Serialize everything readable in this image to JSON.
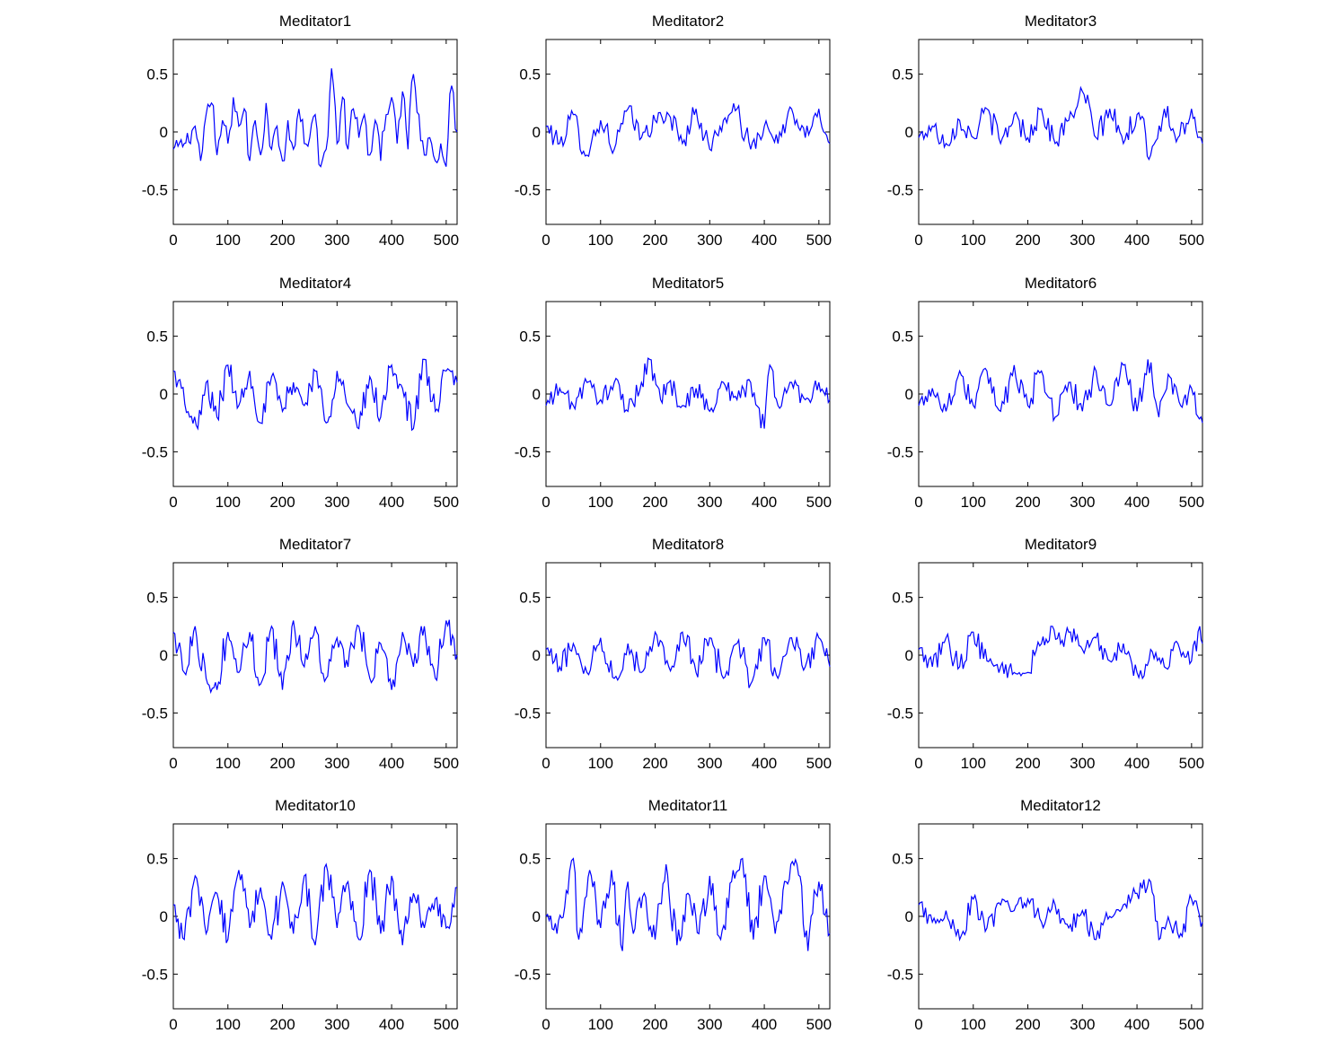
{
  "figure": {
    "background": "#ffffff",
    "line_color": "#0000ff",
    "axis_color": "#000000"
  },
  "chart_data": [
    {
      "type": "line",
      "title": "Meditator1",
      "xlim": [
        0,
        520
      ],
      "ylim": [
        -0.8,
        0.8
      ],
      "xticks": [
        0,
        100,
        200,
        300,
        400,
        500
      ],
      "xtick_labels": [
        "0",
        "100",
        "200",
        "300",
        "400",
        "500"
      ],
      "yticks": [
        0.5,
        0,
        -0.5
      ],
      "ytick_labels": [
        "0.5",
        "0",
        "-0.5"
      ],
      "grid": false,
      "series": [
        {
          "x": [
            0,
            20,
            40,
            50,
            60,
            70,
            80,
            90,
            100,
            110,
            120,
            130,
            140,
            150,
            160,
            170,
            180,
            190,
            200,
            210,
            220,
            230,
            240,
            250,
            260,
            270,
            280,
            290,
            300,
            310,
            320,
            330,
            340,
            350,
            360,
            370,
            380,
            390,
            400,
            410,
            420,
            430,
            440,
            450,
            460,
            470,
            480,
            490,
            500,
            510,
            520
          ],
          "values": [
            -0.15,
            -0.1,
            0.05,
            -0.25,
            0.15,
            0.25,
            -0.2,
            0.1,
            -0.1,
            0.3,
            0.05,
            0.2,
            -0.25,
            0.1,
            -0.2,
            0.25,
            -0.15,
            0.05,
            -0.25,
            0.1,
            -0.15,
            0.2,
            -0.1,
            -0.05,
            0.15,
            -0.3,
            -0.15,
            0.55,
            -0.1,
            0.3,
            -0.15,
            0.2,
            -0.05,
            0.15,
            -0.2,
            0.1,
            -0.25,
            0.15,
            0.3,
            -0.1,
            0.35,
            -0.15,
            0.5,
            0.15,
            -0.2,
            -0.05,
            -0.25,
            -0.1,
            -0.3,
            0.4,
            0.0
          ]
        }
      ]
    },
    {
      "type": "line",
      "title": "Meditator2",
      "xlim": [
        0,
        520
      ],
      "ylim": [
        -0.8,
        0.8
      ],
      "xticks": [
        0,
        100,
        200,
        300,
        400,
        500
      ],
      "xtick_labels": [
        "0",
        "100",
        "200",
        "300",
        "400",
        "500"
      ],
      "yticks": [
        0.5,
        0,
        -0.5
      ],
      "ytick_labels": [
        "0.5",
        "0",
        "-0.5"
      ],
      "grid": false,
      "series": [
        {
          "x": [
            0,
            25,
            50,
            75,
            100,
            125,
            150,
            175,
            200,
            225,
            250,
            275,
            300,
            325,
            350,
            375,
            400,
            425,
            450,
            475,
            500,
            520
          ],
          "values": [
            0.05,
            -0.1,
            0.15,
            -0.2,
            0.1,
            -0.15,
            0.2,
            -0.05,
            0.1,
            0.15,
            -0.1,
            0.2,
            -0.15,
            0.1,
            0.2,
            -0.15,
            0.05,
            -0.1,
            0.2,
            -0.05,
            0.2,
            -0.1
          ]
        }
      ]
    },
    {
      "type": "line",
      "title": "Meditator3",
      "xlim": [
        0,
        520
      ],
      "ylim": [
        -0.8,
        0.8
      ],
      "xticks": [
        0,
        100,
        200,
        300,
        400,
        500
      ],
      "xtick_labels": [
        "0",
        "100",
        "200",
        "300",
        "400",
        "500"
      ],
      "yticks": [
        0.5,
        0,
        -0.5
      ],
      "ytick_labels": [
        "0.5",
        "0",
        "-0.5"
      ],
      "grid": false,
      "series": [
        {
          "x": [
            0,
            25,
            50,
            75,
            100,
            125,
            150,
            175,
            200,
            225,
            250,
            275,
            300,
            325,
            350,
            375,
            400,
            425,
            450,
            475,
            500,
            520
          ],
          "values": [
            -0.05,
            0.05,
            -0.1,
            0.1,
            -0.05,
            0.2,
            -0.1,
            0.15,
            -0.05,
            0.2,
            -0.1,
            0.1,
            0.35,
            -0.05,
            0.2,
            -0.1,
            0.15,
            -0.2,
            0.2,
            -0.05,
            0.2,
            -0.1
          ]
        }
      ]
    },
    {
      "type": "line",
      "title": "Meditator4",
      "xlim": [
        0,
        520
      ],
      "ylim": [
        -0.8,
        0.8
      ],
      "xticks": [
        0,
        100,
        200,
        300,
        400,
        500
      ],
      "xtick_labels": [
        "0",
        "100",
        "200",
        "300",
        "400",
        "500"
      ],
      "yticks": [
        0.5,
        0,
        -0.5
      ],
      "ytick_labels": [
        "0.5",
        "0",
        "-0.5"
      ],
      "grid": false,
      "series": [
        {
          "x": [
            0,
            15,
            30,
            45,
            60,
            80,
            100,
            120,
            140,
            160,
            180,
            200,
            220,
            240,
            260,
            280,
            300,
            320,
            340,
            360,
            380,
            400,
            420,
            440,
            460,
            480,
            500,
            520
          ],
          "values": [
            0.2,
            0.05,
            -0.2,
            -0.3,
            0.1,
            -0.2,
            0.25,
            -0.1,
            0.2,
            -0.25,
            0.15,
            -0.15,
            0.1,
            -0.1,
            0.2,
            -0.25,
            0.2,
            -0.1,
            -0.3,
            0.15,
            -0.2,
            0.25,
            0.05,
            -0.3,
            0.3,
            -0.15,
            0.2,
            0.1
          ]
        }
      ]
    },
    {
      "type": "line",
      "title": "Meditator5",
      "xlim": [
        0,
        520
      ],
      "ylim": [
        -0.8,
        0.8
      ],
      "xticks": [
        0,
        100,
        200,
        300,
        400,
        500
      ],
      "xtick_labels": [
        "0",
        "100",
        "200",
        "300",
        "400",
        "500"
      ],
      "yticks": [
        0.5,
        0,
        -0.5
      ],
      "ytick_labels": [
        "0.5",
        "0",
        "-0.5"
      ],
      "grid": false,
      "series": [
        {
          "x": [
            0,
            25,
            50,
            75,
            100,
            125,
            150,
            175,
            190,
            210,
            225,
            250,
            275,
            300,
            325,
            350,
            375,
            400,
            410,
            425,
            450,
            475,
            500,
            520
          ],
          "values": [
            -0.1,
            0.05,
            -0.1,
            0.1,
            -0.05,
            0.1,
            -0.15,
            0.1,
            0.3,
            -0.05,
            0.1,
            -0.1,
            0.05,
            -0.15,
            0.1,
            -0.05,
            0.1,
            -0.3,
            0.25,
            -0.1,
            0.1,
            -0.05,
            0.1,
            -0.05
          ]
        }
      ]
    },
    {
      "type": "line",
      "title": "Meditator6",
      "xlim": [
        0,
        520
      ],
      "ylim": [
        -0.8,
        0.8
      ],
      "xticks": [
        0,
        100,
        200,
        300,
        400,
        500
      ],
      "xtick_labels": [
        "0",
        "100",
        "200",
        "300",
        "400",
        "500"
      ],
      "yticks": [
        0.5,
        0,
        -0.5
      ],
      "ytick_labels": [
        "0.5",
        "0",
        "-0.5"
      ],
      "grid": false,
      "series": [
        {
          "x": [
            0,
            25,
            50,
            75,
            100,
            125,
            150,
            175,
            200,
            225,
            250,
            275,
            300,
            325,
            350,
            375,
            400,
            420,
            440,
            460,
            480,
            500,
            520
          ],
          "values": [
            -0.1,
            0.05,
            -0.15,
            0.2,
            -0.1,
            0.2,
            -0.15,
            0.25,
            -0.1,
            0.2,
            -0.2,
            0.1,
            -0.15,
            0.2,
            -0.1,
            0.25,
            -0.15,
            0.3,
            -0.2,
            0.15,
            -0.1,
            0.05,
            -0.25
          ]
        }
      ]
    },
    {
      "type": "line",
      "title": "Meditator7",
      "xlim": [
        0,
        520
      ],
      "ylim": [
        -0.8,
        0.8
      ],
      "xticks": [
        0,
        100,
        200,
        300,
        400,
        500
      ],
      "xtick_labels": [
        "0",
        "100",
        "200",
        "300",
        "400",
        "500"
      ],
      "yticks": [
        0.5,
        0,
        -0.5
      ],
      "ytick_labels": [
        "0.5",
        "0",
        "-0.5"
      ],
      "grid": false,
      "series": [
        {
          "x": [
            0,
            20,
            40,
            60,
            80,
            100,
            120,
            140,
            160,
            180,
            200,
            220,
            240,
            260,
            280,
            300,
            320,
            340,
            360,
            380,
            400,
            420,
            440,
            460,
            480,
            500,
            520
          ],
          "values": [
            0.2,
            -0.15,
            0.25,
            -0.2,
            -0.3,
            0.2,
            -0.15,
            0.2,
            -0.25,
            0.25,
            -0.3,
            0.3,
            -0.1,
            0.25,
            -0.2,
            0.15,
            -0.1,
            0.25,
            -0.2,
            0.1,
            -0.3,
            0.2,
            -0.1,
            0.25,
            -0.2,
            0.3,
            0.0
          ]
        }
      ]
    },
    {
      "type": "line",
      "title": "Meditator8",
      "xlim": [
        0,
        520
      ],
      "ylim": [
        -0.8,
        0.8
      ],
      "xticks": [
        0,
        100,
        200,
        300,
        400,
        500
      ],
      "xtick_labels": [
        "0",
        "100",
        "200",
        "300",
        "400",
        "500"
      ],
      "yticks": [
        0.5,
        0,
        -0.5
      ],
      "ytick_labels": [
        "0.5",
        "0",
        "-0.5"
      ],
      "grid": false,
      "series": [
        {
          "x": [
            0,
            25,
            50,
            75,
            100,
            125,
            150,
            175,
            200,
            225,
            250,
            275,
            300,
            325,
            350,
            375,
            400,
            425,
            450,
            475,
            500,
            520
          ],
          "values": [
            0.05,
            -0.1,
            0.1,
            -0.15,
            0.15,
            -0.2,
            0.1,
            -0.15,
            0.2,
            -0.1,
            0.2,
            -0.15,
            0.15,
            -0.2,
            0.1,
            -0.25,
            0.15,
            -0.2,
            0.15,
            -0.1,
            0.15,
            -0.1
          ]
        }
      ]
    },
    {
      "type": "line",
      "title": "Meditator9",
      "xlim": [
        0,
        520
      ],
      "ylim": [
        -0.8,
        0.8
      ],
      "xticks": [
        0,
        100,
        200,
        300,
        400,
        500
      ],
      "xtick_labels": [
        "0",
        "100",
        "200",
        "300",
        "400",
        "500"
      ],
      "yticks": [
        0.5,
        0,
        -0.5
      ],
      "ytick_labels": [
        "0.5",
        "0",
        "-0.5"
      ],
      "grid": false,
      "series": [
        {
          "x": [
            0,
            25,
            50,
            75,
            100,
            125,
            150,
            175,
            200,
            225,
            245,
            260,
            275,
            300,
            325,
            350,
            375,
            400,
            410,
            425,
            450,
            475,
            500,
            515,
            520
          ],
          "values": [
            0.05,
            -0.1,
            0.15,
            -0.1,
            0.2,
            -0.05,
            -0.1,
            -0.15,
            -0.15,
            0.1,
            0.25,
            0.1,
            0.2,
            0.05,
            0.15,
            -0.05,
            0.1,
            -0.15,
            -0.2,
            0.05,
            -0.1,
            0.1,
            -0.05,
            0.25,
            0.1
          ]
        }
      ]
    },
    {
      "type": "line",
      "title": "Meditator10",
      "xlim": [
        0,
        520
      ],
      "ylim": [
        -0.8,
        0.8
      ],
      "xticks": [
        0,
        100,
        200,
        300,
        400,
        500
      ],
      "xtick_labels": [
        "0",
        "100",
        "200",
        "300",
        "400",
        "500"
      ],
      "yticks": [
        0.5,
        0,
        -0.5
      ],
      "ytick_labels": [
        "0.5",
        "0",
        "-0.5"
      ],
      "grid": false,
      "series": [
        {
          "x": [
            0,
            20,
            40,
            60,
            80,
            100,
            120,
            140,
            160,
            180,
            200,
            220,
            240,
            260,
            280,
            300,
            320,
            340,
            360,
            380,
            400,
            420,
            440,
            460,
            480,
            500,
            520
          ],
          "values": [
            0.1,
            -0.2,
            0.35,
            -0.15,
            0.2,
            -0.2,
            0.4,
            -0.1,
            0.25,
            -0.2,
            0.3,
            -0.15,
            0.35,
            -0.25,
            0.45,
            -0.1,
            0.3,
            -0.2,
            0.4,
            -0.15,
            0.35,
            -0.25,
            0.2,
            -0.1,
            0.15,
            -0.1,
            0.25
          ]
        }
      ]
    },
    {
      "type": "line",
      "title": "Meditator11",
      "xlim": [
        0,
        520
      ],
      "ylim": [
        -0.8,
        0.8
      ],
      "xticks": [
        0,
        100,
        200,
        300,
        400,
        500
      ],
      "xtick_labels": [
        "0",
        "100",
        "200",
        "300",
        "400",
        "500"
      ],
      "yticks": [
        0.5,
        0,
        -0.5
      ],
      "ytick_labels": [
        "0.5",
        "0",
        "-0.5"
      ],
      "grid": false,
      "series": [
        {
          "x": [
            0,
            20,
            40,
            50,
            60,
            80,
            100,
            120,
            140,
            150,
            160,
            180,
            200,
            220,
            240,
            260,
            280,
            300,
            320,
            340,
            360,
            380,
            400,
            420,
            440,
            460,
            480,
            500,
            520
          ],
          "values": [
            0.0,
            -0.15,
            0.2,
            0.5,
            -0.2,
            0.4,
            -0.1,
            0.4,
            -0.3,
            0.3,
            -0.15,
            0.2,
            -0.2,
            0.45,
            -0.25,
            0.2,
            -0.15,
            0.35,
            -0.2,
            0.3,
            0.5,
            -0.2,
            0.35,
            -0.15,
            0.3,
            0.45,
            -0.3,
            0.3,
            -0.15
          ]
        }
      ]
    },
    {
      "type": "line",
      "title": "Meditator12",
      "xlim": [
        0,
        520
      ],
      "ylim": [
        -0.8,
        0.8
      ],
      "xticks": [
        0,
        100,
        200,
        300,
        400,
        500
      ],
      "xtick_labels": [
        "0",
        "100",
        "200",
        "300",
        "400",
        "500"
      ],
      "yticks": [
        0.5,
        0,
        -0.5
      ],
      "ytick_labels": [
        "0.5",
        "0",
        "-0.5"
      ],
      "grid": false,
      "series": [
        {
          "x": [
            0,
            25,
            50,
            75,
            100,
            125,
            150,
            175,
            200,
            225,
            250,
            275,
            300,
            325,
            350,
            375,
            400,
            425,
            440,
            460,
            480,
            500,
            520
          ],
          "values": [
            0.1,
            -0.05,
            0.05,
            -0.2,
            0.15,
            -0.1,
            0.1,
            0.05,
            0.15,
            -0.05,
            0.1,
            -0.1,
            0.05,
            -0.2,
            0.0,
            0.1,
            0.2,
            0.3,
            -0.2,
            -0.05,
            -0.15,
            0.15,
            -0.05
          ]
        }
      ]
    }
  ]
}
